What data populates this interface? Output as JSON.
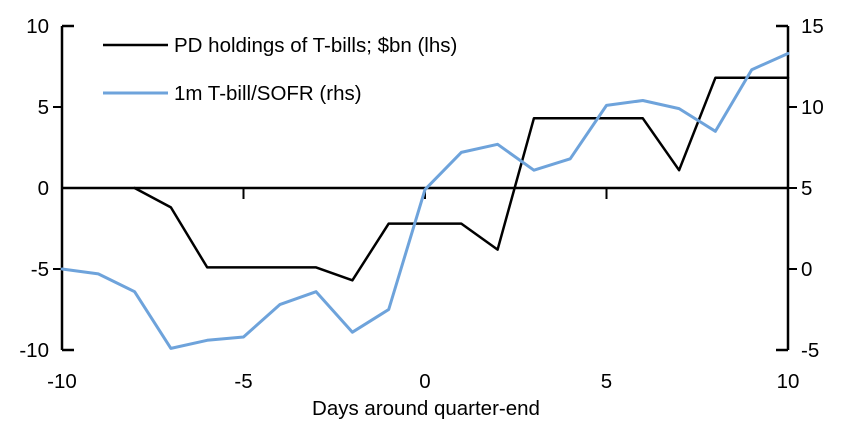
{
  "chart_data": {
    "type": "line",
    "title": "",
    "xlabel": "Days around quarter-end",
    "ylabel_left": "",
    "ylabel_right": "",
    "x": [
      -10,
      -9,
      -8,
      -7,
      -6,
      -5,
      -4,
      -3,
      -2,
      -1,
      0,
      1,
      2,
      3,
      4,
      5,
      6,
      7,
      8,
      9,
      10
    ],
    "series": [
      {
        "name": "PD holdings of T-bills; $bn (lhs)",
        "axis": "left",
        "color": "#000000",
        "stroke_width": 2.5,
        "values": [
          null,
          null,
          0.0,
          -1.2,
          -4.9,
          -4.9,
          -4.9,
          -4.9,
          -5.7,
          -2.2,
          -2.2,
          -2.2,
          -3.8,
          4.3,
          4.3,
          4.3,
          4.3,
          1.1,
          6.8,
          6.8,
          6.8
        ]
      },
      {
        "name": "1m T-bill/SOFR (rhs)",
        "axis": "right",
        "color": "#6EA3DB",
        "stroke_width": 3,
        "values": [
          0.0,
          -0.3,
          -1.4,
          -4.9,
          -4.4,
          -4.2,
          -2.2,
          -1.4,
          -3.9,
          -2.5,
          4.9,
          7.2,
          7.7,
          6.1,
          6.8,
          10.1,
          10.4,
          9.9,
          8.5,
          12.3,
          13.3
        ]
      }
    ],
    "left_axis": {
      "min": -10,
      "max": 10,
      "ticks": [
        10,
        5,
        0,
        -5,
        -10
      ]
    },
    "right_axis": {
      "min": -5,
      "max": 15,
      "ticks": [
        15,
        10,
        5,
        0,
        -5
      ]
    },
    "x_axis": {
      "min": -10,
      "max": 10,
      "tick_labels": [
        -10,
        -5,
        0,
        5,
        10
      ],
      "tick_marks": [
        -5,
        0,
        5
      ]
    },
    "legend_position": "top-left",
    "grid": false,
    "axis_color": "#000000",
    "background_color": "#ffffff"
  }
}
